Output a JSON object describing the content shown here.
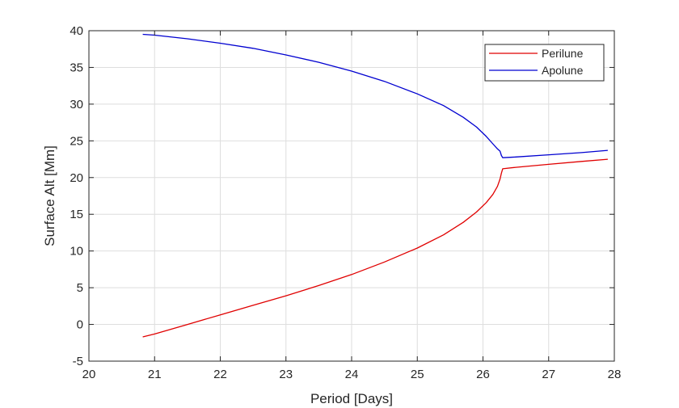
{
  "chart_data": {
    "type": "line",
    "xlabel": "Period [Days]",
    "ylabel": "Surface Alt [Mm]",
    "xlim": [
      20,
      28
    ],
    "ylim": [
      -5,
      40
    ],
    "xticks": [
      20,
      21,
      22,
      23,
      24,
      25,
      26,
      27,
      28
    ],
    "yticks": [
      -5,
      0,
      5,
      10,
      15,
      20,
      25,
      30,
      35,
      40
    ],
    "grid": true,
    "legend_position": "top-right",
    "series": [
      {
        "name": "Perilune",
        "color": "#e00000",
        "x": [
          20.82,
          21.0,
          21.5,
          22.0,
          22.5,
          23.0,
          23.5,
          24.0,
          24.5,
          25.0,
          25.4,
          25.7,
          25.9,
          26.05,
          26.15,
          26.22,
          26.26,
          26.28,
          26.3,
          26.5,
          27.0,
          27.5,
          27.9
        ],
        "y": [
          -1.7,
          -1.3,
          0.0,
          1.3,
          2.6,
          3.9,
          5.3,
          6.8,
          8.5,
          10.4,
          12.2,
          13.9,
          15.3,
          16.6,
          17.7,
          18.8,
          19.8,
          20.6,
          21.2,
          21.4,
          21.8,
          22.2,
          22.5
        ]
      },
      {
        "name": "Apolune",
        "color": "#0000d0",
        "x": [
          20.82,
          21.0,
          21.5,
          22.0,
          22.5,
          23.0,
          23.5,
          24.0,
          24.5,
          25.0,
          25.4,
          25.7,
          25.9,
          26.05,
          26.15,
          26.22,
          26.26,
          26.28,
          26.3,
          26.5,
          27.0,
          27.5,
          27.9
        ],
        "y": [
          39.5,
          39.4,
          38.9,
          38.3,
          37.6,
          36.7,
          35.7,
          34.5,
          33.1,
          31.4,
          29.8,
          28.2,
          26.9,
          25.6,
          24.6,
          23.9,
          23.6,
          23.0,
          22.7,
          22.8,
          23.1,
          23.4,
          23.7
        ]
      }
    ]
  }
}
